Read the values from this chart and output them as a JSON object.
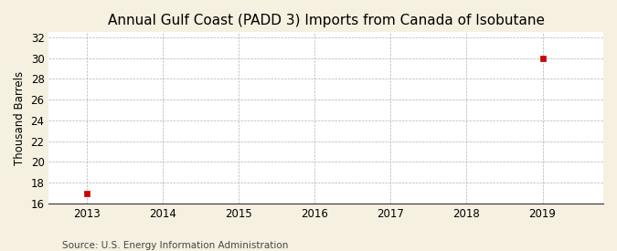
{
  "title": "Annual Gulf Coast (PADD 3) Imports from Canada of Isobutane",
  "ylabel": "Thousand Barrels",
  "source": "Source: U.S. Energy Information Administration",
  "x_data": [
    2013,
    2019
  ],
  "y_data": [
    17,
    30
  ],
  "marker_color": "#cc0000",
  "marker_size": 4,
  "xlim": [
    2012.5,
    2019.8
  ],
  "ylim": [
    16,
    32.5
  ],
  "yticks": [
    16,
    18,
    20,
    22,
    24,
    26,
    28,
    30,
    32
  ],
  "xticks": [
    2013,
    2014,
    2015,
    2016,
    2017,
    2018,
    2019
  ],
  "figure_bg_color": "#f5f0e0",
  "plot_bg_color": "#ffffff",
  "grid_color": "#aaaaaa",
  "spine_color": "#333333",
  "title_fontsize": 11,
  "label_fontsize": 8.5,
  "tick_fontsize": 8.5,
  "source_fontsize": 7.5
}
